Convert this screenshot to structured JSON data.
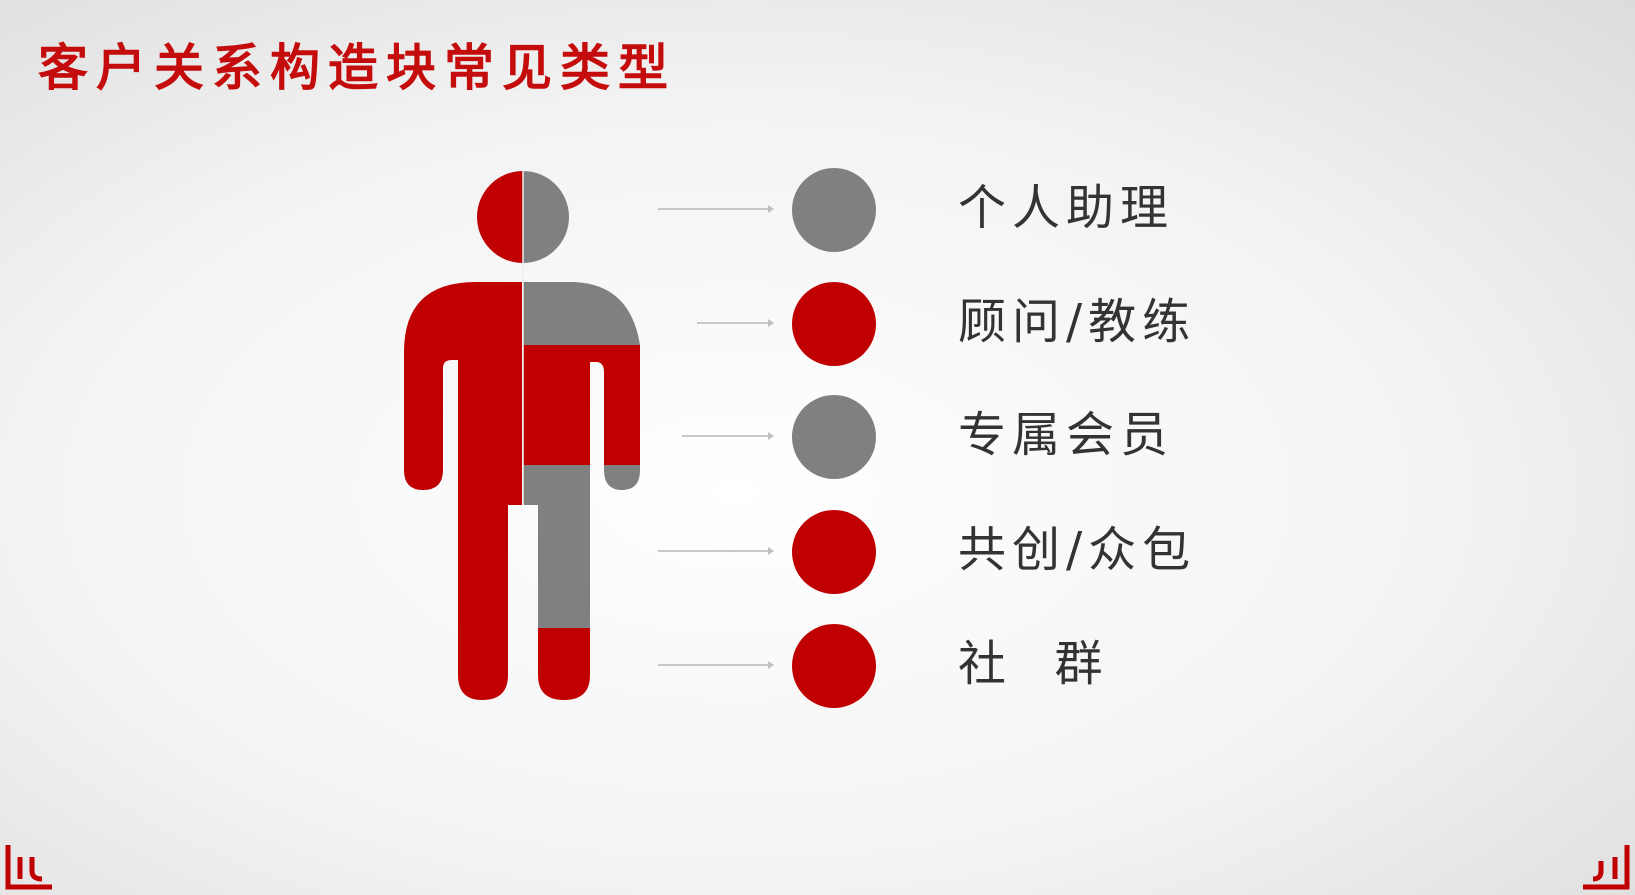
{
  "title": "客户关系构造块常见类型",
  "colors": {
    "red": "#c00000",
    "gray": "#808080",
    "title": "#c40c0c"
  },
  "items": [
    {
      "label": "个人助理",
      "color": "gray"
    },
    {
      "label": "顾问/教练",
      "color": "red"
    },
    {
      "label": "专属会员",
      "color": "gray"
    },
    {
      "label": "共创/众包",
      "color": "red"
    },
    {
      "label": "社  群",
      "color": "red"
    }
  ],
  "icons": {
    "figure": "person-icon",
    "corner_left": "logo-mark-icon",
    "corner_right": "logo-mark-icon"
  }
}
